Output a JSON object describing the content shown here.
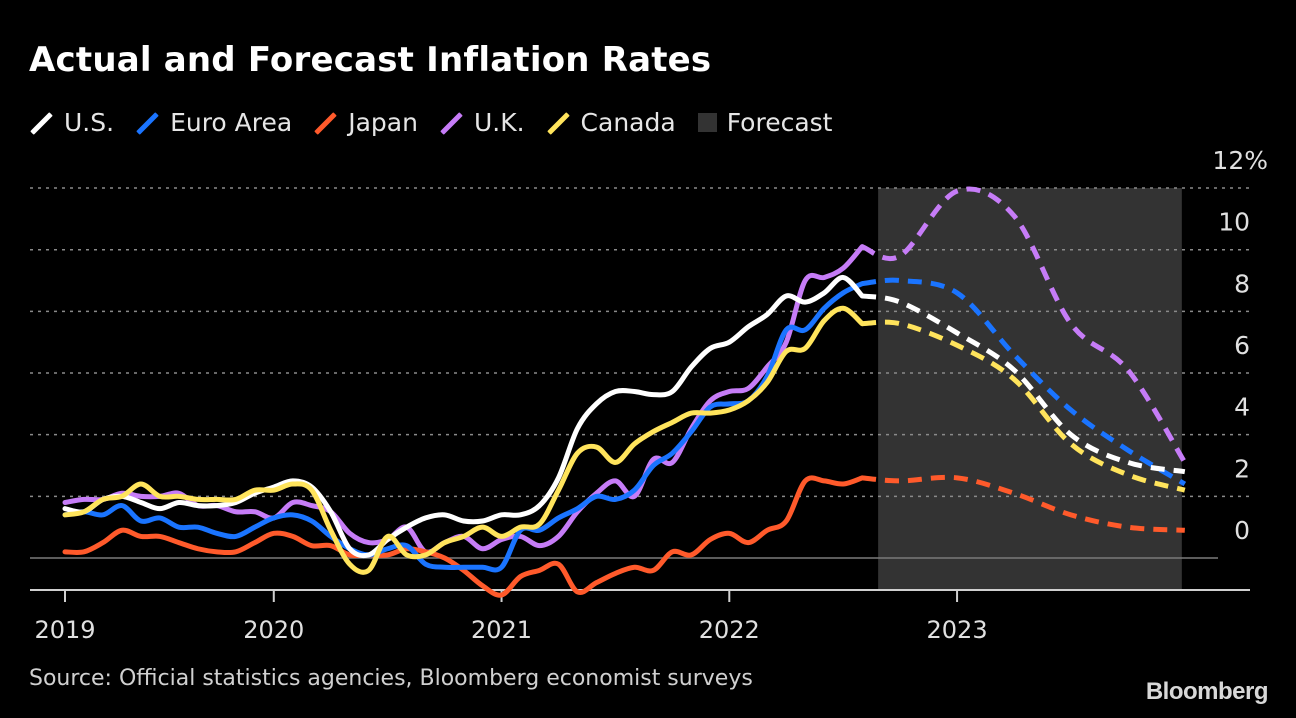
{
  "chart_data": {
    "type": "line",
    "title": "Actual and Forecast Inflation Rates",
    "source": "Source: Official statistics agencies, Bloomberg economist surveys",
    "logo": "Bloomberg",
    "xlabel": "",
    "ylabel": "",
    "ylim": [
      -1,
      12
    ],
    "y_ticks": [
      12,
      10,
      8,
      6,
      4,
      2,
      0
    ],
    "y_tick_labels": [
      "12%",
      "10",
      "8",
      "6",
      "4",
      "2",
      "0"
    ],
    "x_tick_labels": [
      "2019",
      "2020",
      "2021",
      "2022",
      "2023"
    ],
    "grid": true,
    "legend_position": "top-left",
    "forecast_region": {
      "label": "Forecast",
      "start": "2022-08",
      "end": "2023-12",
      "color": "#333333"
    },
    "actual_start": "2019-01",
    "actual_frequency": "monthly",
    "forecast_x": [
      "2022-07",
      "2022-09",
      "2022-12",
      "2023-03",
      "2023-06",
      "2023-09",
      "2023-12"
    ],
    "series": [
      {
        "name": "U.S.",
        "color": "#ffffff",
        "actual": [
          1.6,
          1.5,
          1.9,
          2.0,
          1.8,
          1.6,
          1.8,
          1.7,
          1.7,
          1.8,
          2.1,
          2.3,
          2.5,
          2.3,
          1.5,
          0.3,
          0.1,
          0.6,
          1.0,
          1.3,
          1.4,
          1.2,
          1.2,
          1.4,
          1.4,
          1.7,
          2.6,
          4.2,
          5.0,
          5.4,
          5.4,
          5.3,
          5.4,
          6.2,
          6.8,
          7.0,
          7.5,
          7.9,
          8.5,
          8.3,
          8.6,
          9.1,
          8.5
        ],
        "forecast": [
          8.5,
          8.3,
          7.3,
          6.1,
          4.0,
          3.1,
          2.8
        ]
      },
      {
        "name": "Euro Area",
        "color": "#1a74ff",
        "actual": [
          1.4,
          1.5,
          1.4,
          1.7,
          1.2,
          1.3,
          1.0,
          1.0,
          0.8,
          0.7,
          1.0,
          1.3,
          1.4,
          1.2,
          0.7,
          0.3,
          0.1,
          0.3,
          0.4,
          -0.2,
          -0.3,
          -0.3,
          -0.3,
          -0.3,
          0.9,
          0.9,
          1.3,
          1.6,
          2.0,
          1.9,
          2.2,
          3.0,
          3.4,
          4.1,
          4.9,
          5.0,
          5.1,
          5.9,
          7.4,
          7.4,
          8.1,
          8.6,
          8.9
        ],
        "forecast": [
          8.9,
          9.0,
          8.6,
          6.6,
          4.8,
          3.5,
          2.4
        ]
      },
      {
        "name": "Japan",
        "color": "#ff5a2b",
        "actual": [
          0.2,
          0.2,
          0.5,
          0.9,
          0.7,
          0.7,
          0.5,
          0.3,
          0.2,
          0.2,
          0.5,
          0.8,
          0.7,
          0.4,
          0.4,
          0.1,
          0.1,
          0.1,
          0.3,
          0.2,
          0.0,
          -0.4,
          -0.9,
          -1.2,
          -0.6,
          -0.4,
          -0.2,
          -1.1,
          -0.8,
          -0.5,
          -0.3,
          -0.4,
          0.2,
          0.1,
          0.6,
          0.8,
          0.5,
          0.9,
          1.2,
          2.5,
          2.5,
          2.4,
          2.6
        ],
        "forecast": [
          2.6,
          2.5,
          2.6,
          2.1,
          1.4,
          1.0,
          0.9
        ]
      },
      {
        "name": "U.K.",
        "color": "#c67cf7",
        "actual": [
          1.8,
          1.9,
          1.9,
          2.1,
          2.0,
          2.0,
          2.1,
          1.7,
          1.7,
          1.5,
          1.5,
          1.3,
          1.8,
          1.7,
          1.5,
          0.8,
          0.5,
          0.6,
          1.0,
          0.2,
          0.5,
          0.7,
          0.3,
          0.6,
          0.7,
          0.4,
          0.7,
          1.5,
          2.1,
          2.5,
          2.0,
          3.2,
          3.1,
          4.2,
          5.1,
          5.4,
          5.5,
          6.2,
          7.0,
          9.0,
          9.1,
          9.4,
          10.1
        ],
        "forecast": [
          10.1,
          9.8,
          11.9,
          11.1,
          7.6,
          6.1,
          3.1
        ]
      },
      {
        "name": "Canada",
        "color": "#ffe45c",
        "actual": [
          1.4,
          1.5,
          1.9,
          2.0,
          2.4,
          2.0,
          2.0,
          1.9,
          1.9,
          1.9,
          2.2,
          2.2,
          2.4,
          2.2,
          0.9,
          -0.2,
          -0.4,
          0.7,
          0.1,
          0.1,
          0.5,
          0.7,
          1.0,
          0.7,
          1.0,
          1.1,
          2.2,
          3.4,
          3.6,
          3.1,
          3.7,
          4.1,
          4.4,
          4.7,
          4.7,
          4.8,
          5.1,
          5.7,
          6.7,
          6.8,
          7.7,
          8.1,
          7.6
        ],
        "forecast": [
          7.6,
          7.6,
          6.9,
          5.8,
          3.7,
          2.7,
          2.2
        ]
      }
    ]
  }
}
